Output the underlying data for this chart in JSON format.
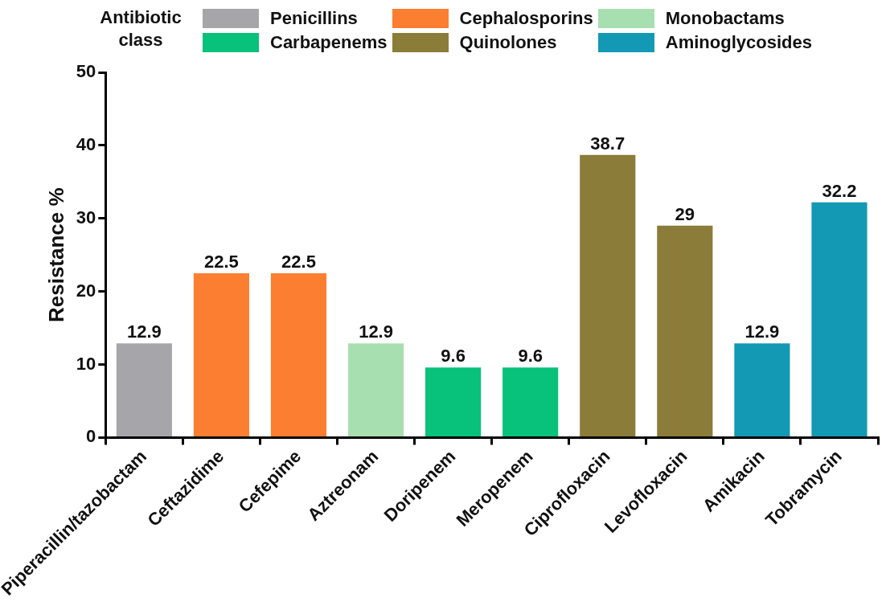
{
  "chart_data": {
    "type": "bar",
    "stacked": true,
    "legend": "top",
    "legend_title": "Antibiotic class",
    "ylabel": "Resistance %",
    "data_labels": true,
    "categories": [
      "Piperacillin/tazobactam",
      "Ceftazidime",
      "Cefepime",
      "Aztreonam",
      "Doripenem",
      "Meropenem",
      "Ciprofloxacin",
      "Levofloxacin",
      "Amikacin",
      "Tobramycin"
    ],
    "ylim": [
      0,
      50
    ],
    "yticks": [
      0,
      10,
      20,
      30,
      40,
      50
    ],
    "series": [
      {
        "name": "Penicillins",
        "color": "#a6a5aa",
        "values": [
          12.9,
          null,
          null,
          null,
          null,
          null,
          null,
          null,
          null,
          null
        ]
      },
      {
        "name": "Carbapenems",
        "color": "#08c17a",
        "values": [
          null,
          null,
          null,
          null,
          9.6,
          9.6,
          null,
          null,
          null,
          null
        ]
      },
      {
        "name": "Cephalosporins",
        "color": "#fc7f31",
        "values": [
          null,
          22.5,
          22.5,
          null,
          null,
          null,
          null,
          null,
          null,
          null
        ]
      },
      {
        "name": "Quinolones",
        "color": "#8b7c3a",
        "values": [
          null,
          null,
          null,
          null,
          null,
          null,
          38.7,
          29,
          null,
          null
        ]
      },
      {
        "name": "Monobactams",
        "color": "#a8dfb0",
        "values": [
          null,
          null,
          null,
          12.9,
          null,
          null,
          null,
          null,
          null,
          null
        ]
      },
      {
        "name": "Aminoglycosides",
        "color": "#1399b3",
        "values": [
          null,
          null,
          null,
          null,
          null,
          null,
          null,
          null,
          12.9,
          32.2
        ]
      }
    ]
  }
}
